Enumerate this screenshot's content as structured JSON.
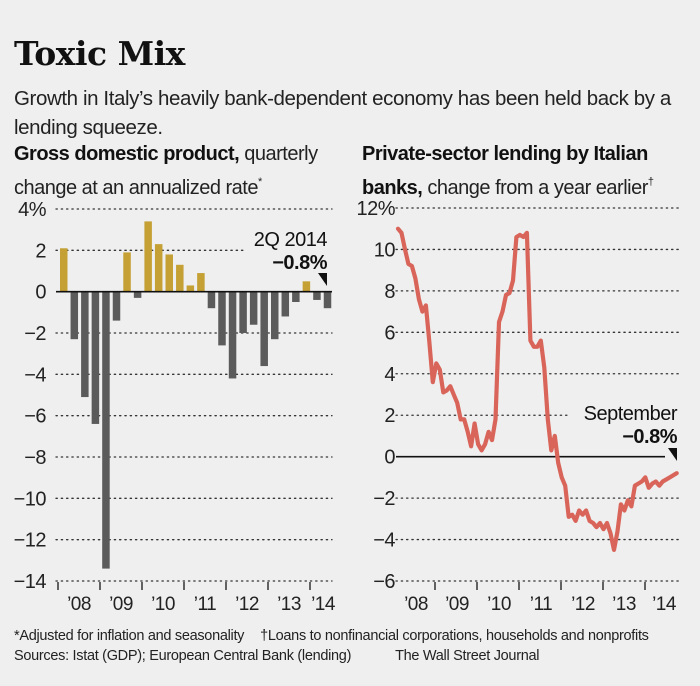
{
  "header": {
    "title": "Toxic Mix",
    "subtitle": "Growth in Italy’s heavily bank-dependent economy has been held back by a lending squeeze."
  },
  "colors": {
    "background": "#efefef",
    "gdp_positive": "#c4a035",
    "gdp_negative": "#5b5b5b",
    "lending_line": "#d9655a",
    "text": "#111111"
  },
  "footer": {
    "note1": "*Adjusted for inflation and seasonality",
    "note2": "†Loans to nonfinancial corporations, households and nonprofits",
    "sources": "Sources: Istat (GDP); European Central Bank (lending)",
    "credit": "The Wall Street Journal"
  },
  "chart_data": [
    {
      "type": "bar",
      "title_bold": "Gross domestic product,",
      "title_rest": " quarterly change at an annualized rate",
      "title_mark": "*",
      "xlabel": "",
      "ylabel": "",
      "y_unit": "%",
      "ylim": [
        -14,
        4
      ],
      "yticks": [
        4,
        2,
        0,
        -2,
        -4,
        -6,
        -8,
        -10,
        -12,
        -14
      ],
      "ytick_labels": [
        "4%",
        "2",
        "0",
        "−2",
        "−4",
        "−6",
        "−8",
        "−10",
        "−12",
        "−14"
      ],
      "xtick_labels": [
        "’08",
        "’09",
        "’10",
        "’11",
        "’12",
        "’13",
        "’14"
      ],
      "grid": "dotted horizontal",
      "categories": [
        "1Q08",
        "2Q08",
        "3Q08",
        "4Q08",
        "1Q09",
        "2Q09",
        "3Q09",
        "4Q09",
        "1Q10",
        "2Q10",
        "3Q10",
        "4Q10",
        "1Q11",
        "2Q11",
        "3Q11",
        "4Q11",
        "1Q12",
        "2Q12",
        "3Q12",
        "4Q12",
        "1Q13",
        "2Q13",
        "3Q13",
        "4Q13",
        "1Q14",
        "2Q14"
      ],
      "values": [
        2.1,
        -2.3,
        -5.1,
        -6.4,
        -13.4,
        -1.4,
        1.9,
        -0.3,
        3.4,
        2.3,
        1.8,
        1.3,
        0.3,
        0.9,
        -0.8,
        -2.6,
        -4.2,
        -2.0,
        -1.6,
        -3.6,
        -2.3,
        -1.2,
        -0.5,
        0.5,
        -0.4,
        -0.8
      ],
      "annotation": {
        "label": "2Q 2014",
        "value": "−0.8%",
        "target": "2Q14"
      }
    },
    {
      "type": "line",
      "title_bold": "Private-sector lending by Italian banks,",
      "title_rest": " change from a year earlier",
      "title_mark": "†",
      "xlabel": "",
      "ylabel": "",
      "y_unit": "%",
      "ylim": [
        -6,
        12
      ],
      "yticks": [
        12,
        10,
        8,
        6,
        4,
        2,
        0,
        -2,
        -4,
        -6
      ],
      "ytick_labels": [
        "12%",
        "10",
        "8",
        "6",
        "4",
        "2",
        "0",
        "−2",
        "−4",
        "−6"
      ],
      "xtick_labels": [
        "’08",
        "’09",
        "’10",
        "’11",
        "’12",
        "’13",
        "’14"
      ],
      "grid": "dotted horizontal",
      "x_start": "Jan 2008",
      "x_end": "Sep 2014",
      "frequency": "monthly",
      "values": [
        11.0,
        10.8,
        10.0,
        9.3,
        9.2,
        8.6,
        7.6,
        7.0,
        7.3,
        5.5,
        3.6,
        4.5,
        4.2,
        3.1,
        3.2,
        3.4,
        3.0,
        2.6,
        1.8,
        1.8,
        1.2,
        0.5,
        1.6,
        0.6,
        0.3,
        0.6,
        1.2,
        0.8,
        1.8,
        6.5,
        7.0,
        7.8,
        7.9,
        8.5,
        10.6,
        10.7,
        10.6,
        10.8,
        5.6,
        5.3,
        5.3,
        5.6,
        4.3,
        1.8,
        0.3,
        1.0,
        -0.3,
        -1.0,
        -1.4,
        -2.9,
        -2.8,
        -3.1,
        -2.6,
        -2.8,
        -2.6,
        -3.1,
        -3.2,
        -3.4,
        -3.2,
        -3.5,
        -3.2,
        -3.7,
        -4.5,
        -3.6,
        -2.3,
        -2.6,
        -2.1,
        -2.4,
        -1.4,
        -1.3,
        -1.2,
        -1.0,
        -1.5,
        -1.3,
        -1.2,
        -1.4,
        -1.2,
        -1.1,
        -1.0,
        -0.9,
        -0.8
      ],
      "annotation": {
        "label": "September",
        "value": "−0.8%",
        "target": "Sep 2014"
      }
    }
  ]
}
